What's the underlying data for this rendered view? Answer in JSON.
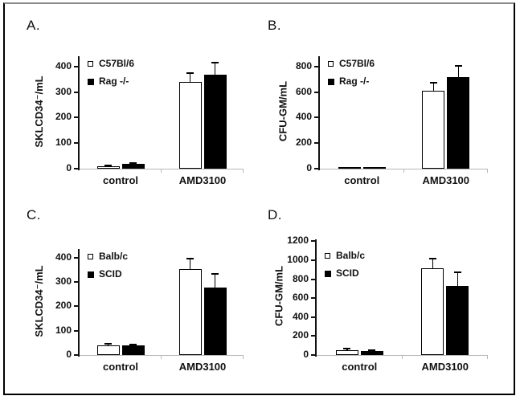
{
  "figure": {
    "background_color": "#ffffff",
    "border_color": "#000000",
    "bar_outline_color": "#000000",
    "axis_color": "#111111",
    "gridline_color": "#b8b8b8"
  },
  "chart_data": [
    {
      "panel_label": "A.",
      "type": "bar",
      "title": "",
      "xlabel": "",
      "ylabel": "SKLCD34⁻/mL",
      "categories": [
        "control",
        "AMD3100"
      ],
      "series": [
        {
          "name": "C57Bl/6",
          "fill": "#ffffff",
          "values": [
            10,
            340
          ],
          "errors": [
            3,
            35
          ]
        },
        {
          "name": "Rag -/-",
          "fill": "#000000",
          "values": [
            18,
            368
          ],
          "errors": [
            3,
            48
          ]
        }
      ],
      "yticks": [
        0,
        100,
        200,
        300,
        400
      ],
      "ylim": [
        0,
        440
      ],
      "grid": false,
      "legend_position": "top-left"
    },
    {
      "panel_label": "B.",
      "type": "bar",
      "title": "",
      "xlabel": "",
      "ylabel": "CFU-GM/mL",
      "categories": [
        "control",
        "AMD3100"
      ],
      "series": [
        {
          "name": "C57Bl/6",
          "fill": "#ffffff",
          "values": [
            10,
            610
          ],
          "errors": [
            0,
            60
          ]
        },
        {
          "name": "Rag -/-",
          "fill": "#000000",
          "values": [
            15,
            715
          ],
          "errors": [
            0,
            90
          ]
        }
      ],
      "yticks": [
        0,
        200,
        400,
        600,
        800
      ],
      "ylim": [
        0,
        880
      ],
      "grid": false,
      "legend_position": "top-left"
    },
    {
      "panel_label": "C.",
      "type": "bar",
      "title": "",
      "xlabel": "",
      "ylabel": "SKLCD34⁻/mL",
      "categories": [
        "control",
        "AMD3100"
      ],
      "series": [
        {
          "name": "Balb/c",
          "fill": "#ffffff",
          "values": [
            40,
            355
          ],
          "errors": [
            5,
            42
          ]
        },
        {
          "name": "SCID",
          "fill": "#000000",
          "values": [
            38,
            278
          ],
          "errors": [
            5,
            57
          ]
        }
      ],
      "yticks": [
        0,
        100,
        200,
        300,
        400
      ],
      "ylim": [
        0,
        436
      ],
      "grid": false,
      "legend_position": "top-left"
    },
    {
      "panel_label": "D.",
      "type": "bar",
      "title": "",
      "xlabel": "",
      "ylabel": "CFU-GM/mL",
      "categories": [
        "control",
        "AMD3100"
      ],
      "series": [
        {
          "name": "Balb/c",
          "fill": "#ffffff",
          "values": [
            55,
            915
          ],
          "errors": [
            15,
            105
          ]
        },
        {
          "name": "SCID",
          "fill": "#000000",
          "values": [
            45,
            725
          ],
          "errors": [
            10,
            145
          ]
        }
      ],
      "yticks": [
        0,
        200,
        400,
        600,
        800,
        1000,
        1200
      ],
      "ylim": [
        0,
        1220
      ],
      "grid": false,
      "legend_position": "top-left"
    }
  ]
}
